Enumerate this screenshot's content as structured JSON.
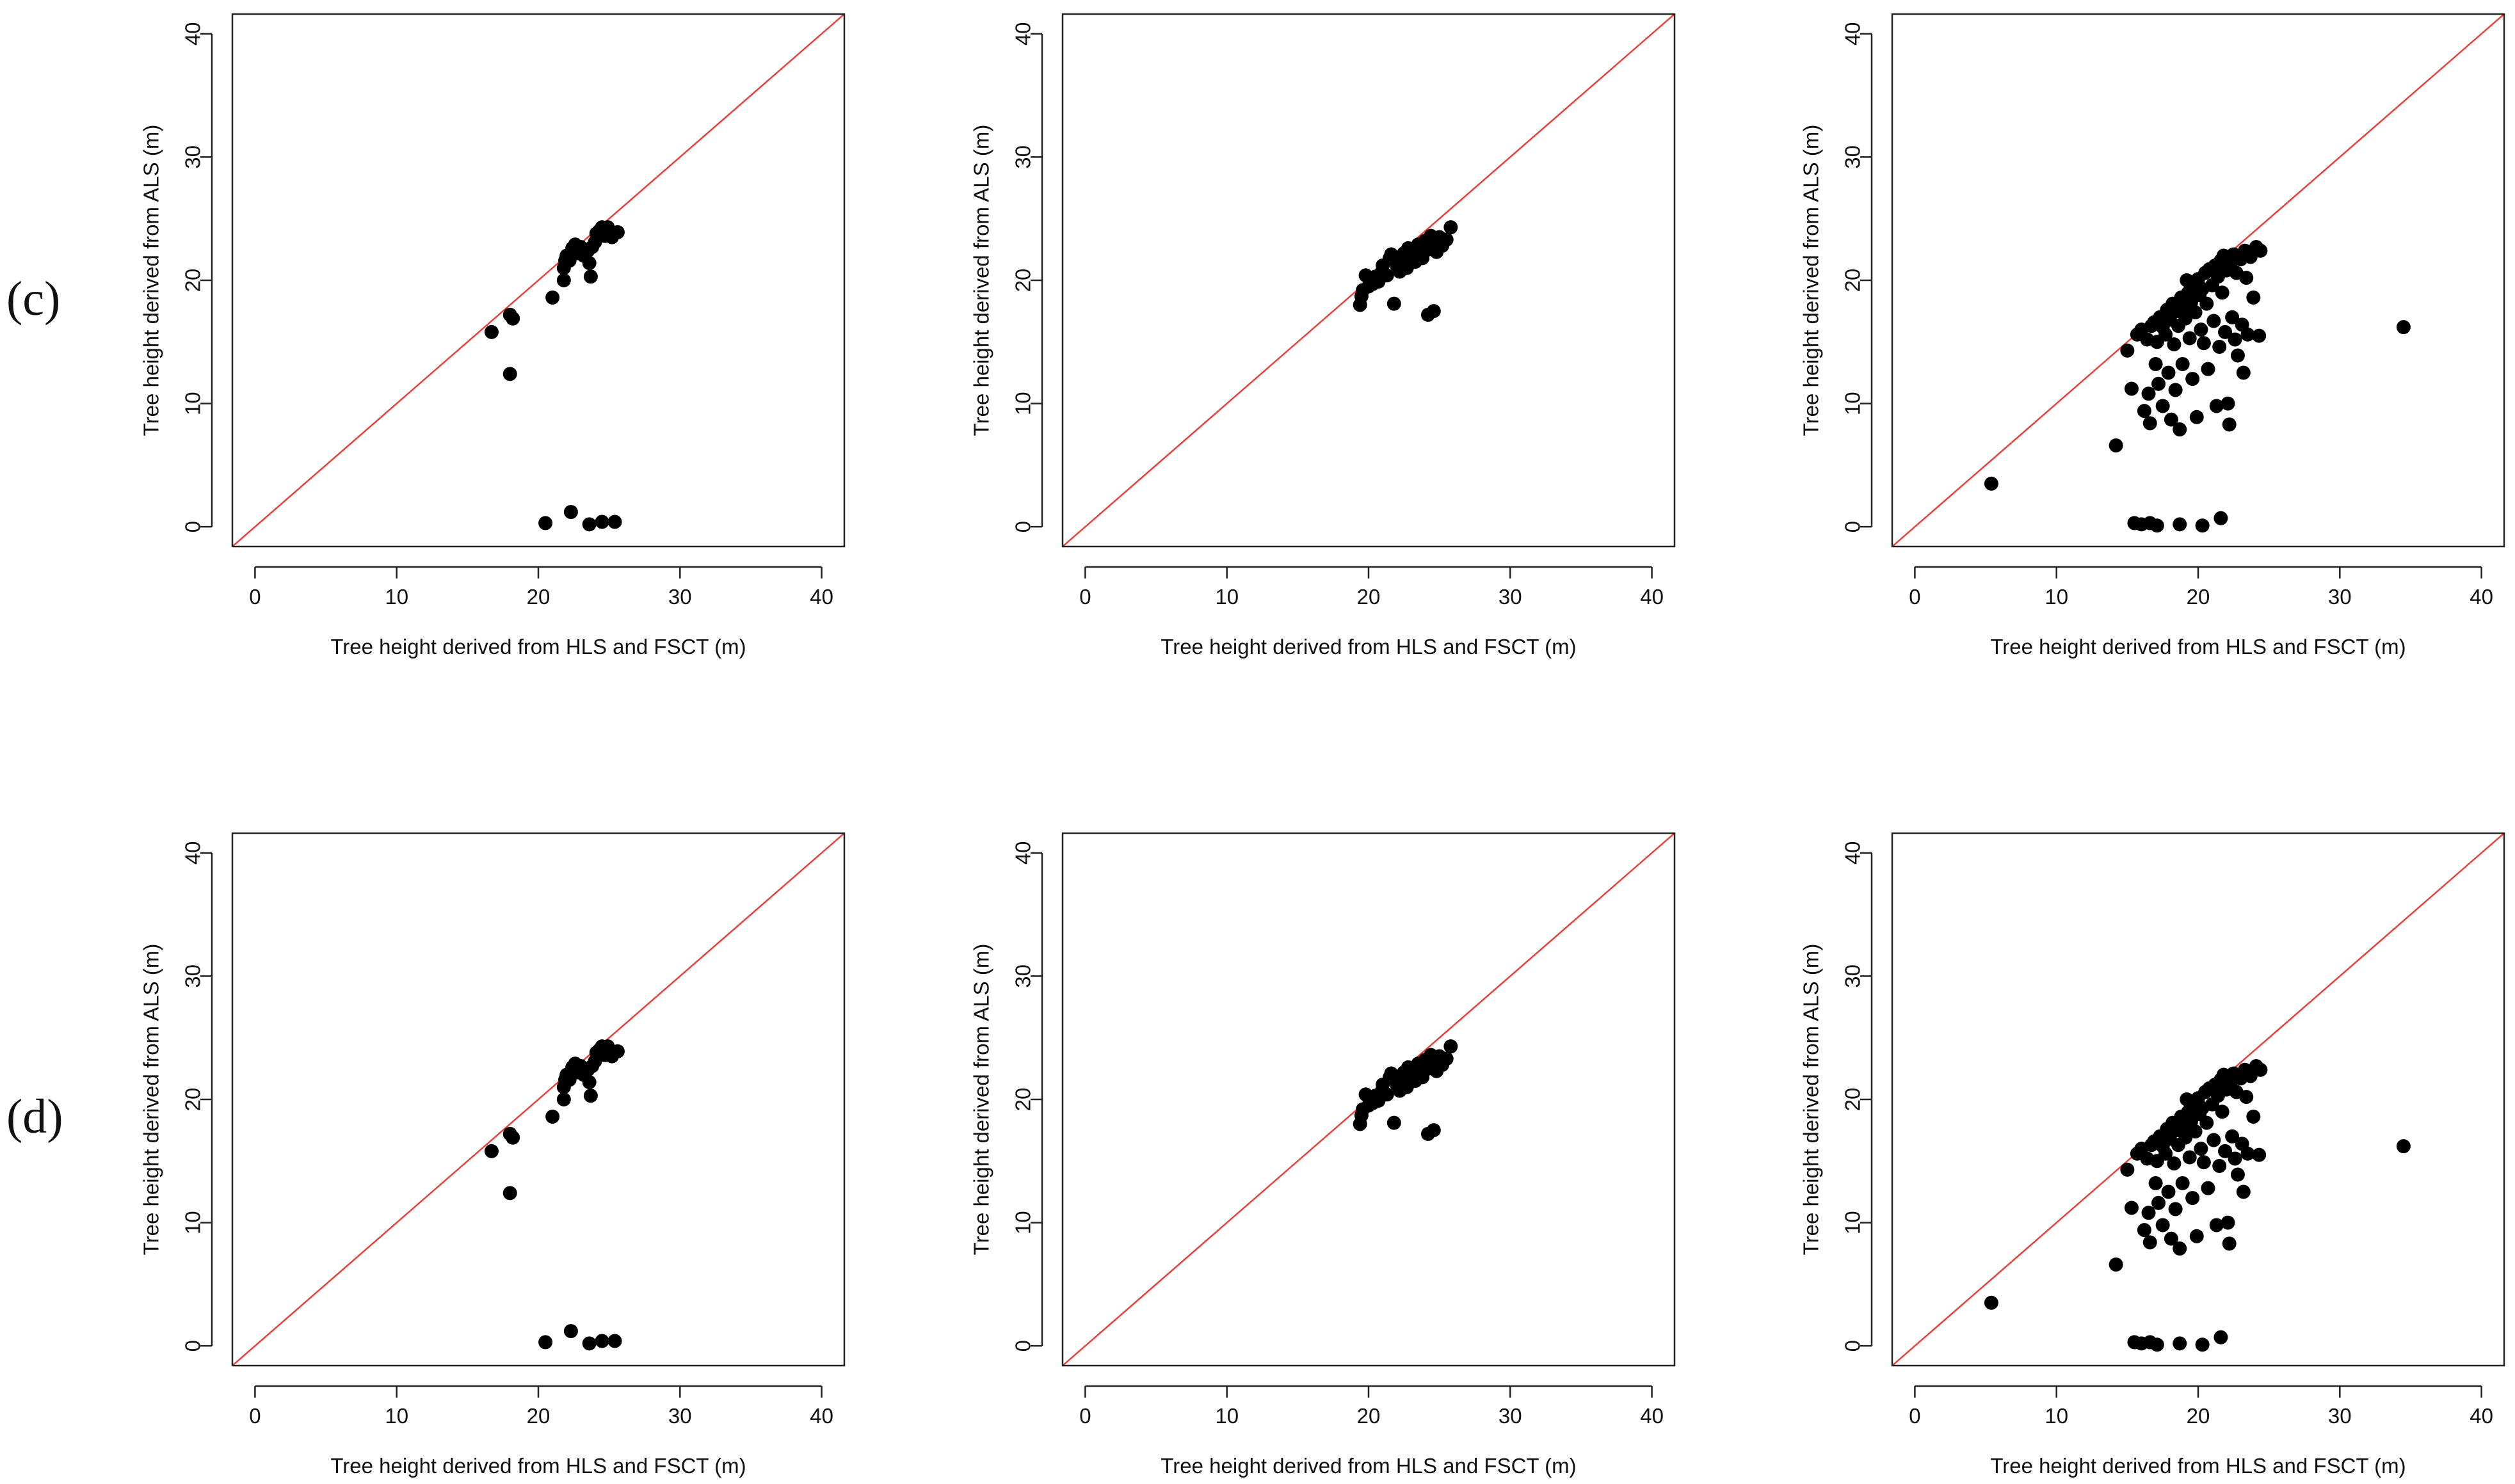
{
  "row_labels": [
    "(c)",
    "(d)"
  ],
  "colors": {
    "reference_line": "#e8413b",
    "points": "#000000",
    "axis": "#222222"
  },
  "chart_data": [
    {
      "type": "scatter",
      "row": "(c)",
      "column": 1,
      "xlabel": "Tree height derived from HLS and FSCT (m)",
      "ylabel": "Tree height derived from ALS (m)",
      "xlim": [
        -1.6,
        41.6
      ],
      "ylim": [
        -1.6,
        41.6
      ],
      "xticks": [
        0,
        10,
        20,
        30,
        40
      ],
      "yticks": [
        0,
        10,
        20,
        30,
        40
      ],
      "reference_line": "y = x",
      "points": [
        [
          16.7,
          15.8
        ],
        [
          18.0,
          17.2
        ],
        [
          18.2,
          16.9
        ],
        [
          18.0,
          12.4
        ],
        [
          21.0,
          18.6
        ],
        [
          21.8,
          20.0
        ],
        [
          21.8,
          21.0
        ],
        [
          21.9,
          21.6
        ],
        [
          22.0,
          22.0
        ],
        [
          22.2,
          21.6
        ],
        [
          22.3,
          22.2
        ],
        [
          22.4,
          22.6
        ],
        [
          22.6,
          22.9
        ],
        [
          22.8,
          22.2
        ],
        [
          23.0,
          22.7
        ],
        [
          23.2,
          22.0
        ],
        [
          23.5,
          22.4
        ],
        [
          23.6,
          21.4
        ],
        [
          23.7,
          20.3
        ],
        [
          23.8,
          22.7
        ],
        [
          24.0,
          23.1
        ],
        [
          24.1,
          23.8
        ],
        [
          24.3,
          24.0
        ],
        [
          24.5,
          24.3
        ],
        [
          24.7,
          23.6
        ],
        [
          24.9,
          24.3
        ],
        [
          25.2,
          23.5
        ],
        [
          25.6,
          23.9
        ],
        [
          20.5,
          0.3
        ],
        [
          22.3,
          1.2
        ],
        [
          23.6,
          0.2
        ],
        [
          24.5,
          0.4
        ],
        [
          25.4,
          0.4
        ]
      ]
    },
    {
      "type": "scatter",
      "row": "(c)",
      "column": 2,
      "xlabel": "Tree height derived from HLS and FSCT (m)",
      "ylabel": "Tree height derived from ALS (m)",
      "xlim": [
        -1.6,
        41.6
      ],
      "ylim": [
        -1.6,
        41.6
      ],
      "xticks": [
        0,
        10,
        20,
        30,
        40
      ],
      "yticks": [
        0,
        10,
        20,
        30,
        40
      ],
      "reference_line": "y = x",
      "points": [
        [
          19.4,
          18.0
        ],
        [
          19.5,
          18.7
        ],
        [
          19.6,
          19.2
        ],
        [
          19.8,
          20.4
        ],
        [
          20.0,
          19.5
        ],
        [
          20.3,
          19.7
        ],
        [
          20.5,
          20.3
        ],
        [
          20.7,
          19.9
        ],
        [
          20.9,
          20.6
        ],
        [
          21.0,
          21.2
        ],
        [
          21.3,
          20.4
        ],
        [
          21.5,
          21.8
        ],
        [
          21.6,
          22.1
        ],
        [
          21.8,
          18.1
        ],
        [
          21.9,
          21.6
        ],
        [
          22.0,
          21.2
        ],
        [
          22.2,
          20.7
        ],
        [
          22.3,
          21.7
        ],
        [
          22.5,
          22.2
        ],
        [
          22.7,
          21.0
        ],
        [
          22.8,
          22.6
        ],
        [
          23.0,
          21.9
        ],
        [
          23.2,
          22.3
        ],
        [
          23.3,
          21.5
        ],
        [
          23.5,
          22.9
        ],
        [
          23.7,
          22.4
        ],
        [
          23.8,
          21.8
        ],
        [
          24.0,
          23.2
        ],
        [
          24.2,
          22.5
        ],
        [
          24.4,
          23.6
        ],
        [
          24.6,
          23.0
        ],
        [
          24.8,
          22.3
        ],
        [
          25.0,
          23.5
        ],
        [
          25.2,
          22.8
        ],
        [
          25.5,
          23.3
        ],
        [
          25.8,
          24.3
        ],
        [
          24.2,
          17.2
        ],
        [
          24.6,
          17.5
        ]
      ]
    },
    {
      "type": "scatter",
      "row": "(c)",
      "column": 3,
      "xlabel": "Tree height derived from HLS and FSCT (m)",
      "ylabel": "Tree height derived from ALS (m)",
      "xlim": [
        -1.6,
        41.6
      ],
      "ylim": [
        -1.6,
        41.6
      ],
      "xticks": [
        0,
        10,
        20,
        30,
        40
      ],
      "yticks": [
        0,
        10,
        20,
        30,
        40
      ],
      "reference_line": "y = x",
      "points": [
        [
          5.4,
          3.5
        ],
        [
          14.2,
          6.6
        ],
        [
          15.0,
          14.3
        ],
        [
          15.3,
          11.2
        ],
        [
          15.7,
          15.6
        ],
        [
          16.0,
          16.0
        ],
        [
          16.2,
          9.4
        ],
        [
          16.4,
          15.2
        ],
        [
          16.5,
          10.8
        ],
        [
          16.6,
          8.4
        ],
        [
          16.7,
          16.3
        ],
        [
          16.9,
          16.6
        ],
        [
          17.0,
          13.2
        ],
        [
          17.1,
          15.0
        ],
        [
          17.2,
          11.6
        ],
        [
          17.3,
          17.0
        ],
        [
          17.5,
          16.2
        ],
        [
          17.5,
          9.8
        ],
        [
          17.7,
          15.6
        ],
        [
          17.8,
          17.6
        ],
        [
          17.9,
          12.5
        ],
        [
          18.0,
          16.8
        ],
        [
          18.1,
          8.7
        ],
        [
          18.2,
          18.1
        ],
        [
          18.3,
          14.8
        ],
        [
          18.4,
          11.1
        ],
        [
          18.5,
          17.5
        ],
        [
          18.6,
          16.3
        ],
        [
          18.7,
          7.9
        ],
        [
          18.8,
          18.6
        ],
        [
          18.9,
          13.2
        ],
        [
          19.0,
          17.8
        ],
        [
          19.1,
          16.9
        ],
        [
          19.2,
          20.0
        ],
        [
          19.3,
          19.0
        ],
        [
          19.4,
          15.3
        ],
        [
          19.5,
          18.2
        ],
        [
          19.6,
          12.0
        ],
        [
          19.7,
          19.5
        ],
        [
          19.8,
          17.4
        ],
        [
          19.9,
          8.9
        ],
        [
          20.0,
          20.1
        ],
        [
          20.1,
          18.8
        ],
        [
          20.2,
          16.0
        ],
        [
          20.3,
          19.3
        ],
        [
          20.4,
          14.9
        ],
        [
          20.5,
          20.6
        ],
        [
          20.6,
          18.1
        ],
        [
          20.7,
          12.8
        ],
        [
          20.8,
          20.9
        ],
        [
          21.0,
          19.6
        ],
        [
          21.1,
          16.7
        ],
        [
          21.2,
          21.2
        ],
        [
          21.3,
          9.8
        ],
        [
          21.4,
          20.3
        ],
        [
          21.5,
          14.6
        ],
        [
          21.6,
          21.6
        ],
        [
          21.7,
          19.0
        ],
        [
          21.8,
          22.0
        ],
        [
          21.9,
          15.8
        ],
        [
          22.0,
          20.8
        ],
        [
          22.1,
          10.0
        ],
        [
          22.2,
          8.3
        ],
        [
          22.3,
          21.4
        ],
        [
          22.4,
          17.0
        ],
        [
          22.5,
          22.1
        ],
        [
          22.6,
          15.2
        ],
        [
          22.7,
          20.6
        ],
        [
          22.8,
          13.9
        ],
        [
          23.0,
          21.7
        ],
        [
          23.1,
          16.4
        ],
        [
          23.2,
          12.5
        ],
        [
          23.3,
          22.4
        ],
        [
          23.4,
          20.2
        ],
        [
          23.5,
          15.6
        ],
        [
          23.7,
          21.9
        ],
        [
          23.9,
          18.6
        ],
        [
          24.1,
          22.7
        ],
        [
          24.3,
          15.5
        ],
        [
          24.4,
          22.4
        ],
        [
          34.5,
          16.2
        ],
        [
          15.5,
          0.3
        ],
        [
          16.0,
          0.2
        ],
        [
          16.6,
          0.3
        ],
        [
          17.1,
          0.1
        ],
        [
          18.7,
          0.2
        ],
        [
          20.3,
          0.1
        ],
        [
          21.6,
          0.7
        ]
      ]
    },
    {
      "type": "scatter",
      "row": "(d)",
      "column": 1,
      "xlabel": "Tree height derived from HLS and FSCT (m)",
      "ylabel": "Tree height derived from ALS (m)",
      "xlim": [
        -1.6,
        41.6
      ],
      "ylim": [
        -1.6,
        41.6
      ],
      "xticks": [
        0,
        10,
        20,
        30,
        40
      ],
      "yticks": [
        0,
        10,
        20,
        30,
        40
      ],
      "reference_line": "y = x",
      "points": [
        [
          16.7,
          15.8
        ],
        [
          18.0,
          17.2
        ],
        [
          18.2,
          16.9
        ],
        [
          18.0,
          12.4
        ],
        [
          21.0,
          18.6
        ],
        [
          21.8,
          20.0
        ],
        [
          21.8,
          21.0
        ],
        [
          21.9,
          21.6
        ],
        [
          22.0,
          22.0
        ],
        [
          22.2,
          21.6
        ],
        [
          22.3,
          22.2
        ],
        [
          22.4,
          22.6
        ],
        [
          22.6,
          22.9
        ],
        [
          22.8,
          22.2
        ],
        [
          23.0,
          22.7
        ],
        [
          23.2,
          22.0
        ],
        [
          23.5,
          22.4
        ],
        [
          23.6,
          21.4
        ],
        [
          23.7,
          20.3
        ],
        [
          23.8,
          22.7
        ],
        [
          24.0,
          23.1
        ],
        [
          24.1,
          23.8
        ],
        [
          24.3,
          24.0
        ],
        [
          24.5,
          24.3
        ],
        [
          24.7,
          23.6
        ],
        [
          24.9,
          24.3
        ],
        [
          25.2,
          23.5
        ],
        [
          25.6,
          23.9
        ],
        [
          20.5,
          0.3
        ],
        [
          22.3,
          1.2
        ],
        [
          23.6,
          0.2
        ],
        [
          24.5,
          0.4
        ],
        [
          25.4,
          0.4
        ]
      ]
    },
    {
      "type": "scatter",
      "row": "(d)",
      "column": 2,
      "xlabel": "Tree height derived from HLS and FSCT (m)",
      "ylabel": "Tree height derived from ALS (m)",
      "xlim": [
        -1.6,
        41.6
      ],
      "ylim": [
        -1.6,
        41.6
      ],
      "xticks": [
        0,
        10,
        20,
        30,
        40
      ],
      "yticks": [
        0,
        10,
        20,
        30,
        40
      ],
      "reference_line": "y = x",
      "points": [
        [
          19.4,
          18.0
        ],
        [
          19.5,
          18.7
        ],
        [
          19.6,
          19.2
        ],
        [
          19.8,
          20.4
        ],
        [
          20.0,
          19.5
        ],
        [
          20.3,
          19.7
        ],
        [
          20.5,
          20.3
        ],
        [
          20.7,
          19.9
        ],
        [
          20.9,
          20.6
        ],
        [
          21.0,
          21.2
        ],
        [
          21.3,
          20.4
        ],
        [
          21.5,
          21.8
        ],
        [
          21.6,
          22.1
        ],
        [
          21.8,
          18.1
        ],
        [
          21.9,
          21.6
        ],
        [
          22.0,
          21.2
        ],
        [
          22.2,
          20.7
        ],
        [
          22.3,
          21.7
        ],
        [
          22.5,
          22.2
        ],
        [
          22.7,
          21.0
        ],
        [
          22.8,
          22.6
        ],
        [
          23.0,
          21.9
        ],
        [
          23.2,
          22.3
        ],
        [
          23.3,
          21.5
        ],
        [
          23.5,
          22.9
        ],
        [
          23.7,
          22.4
        ],
        [
          23.8,
          21.8
        ],
        [
          24.0,
          23.2
        ],
        [
          24.2,
          22.5
        ],
        [
          24.4,
          23.6
        ],
        [
          24.6,
          23.0
        ],
        [
          24.8,
          22.3
        ],
        [
          25.0,
          23.5
        ],
        [
          25.2,
          22.8
        ],
        [
          25.5,
          23.3
        ],
        [
          25.8,
          24.3
        ],
        [
          24.2,
          17.2
        ],
        [
          24.6,
          17.5
        ]
      ]
    },
    {
      "type": "scatter",
      "row": "(d)",
      "column": 3,
      "xlabel": "Tree height derived from HLS and FSCT (m)",
      "ylabel": "Tree height derived from ALS (m)",
      "xlim": [
        -1.6,
        41.6
      ],
      "ylim": [
        -1.6,
        41.6
      ],
      "xticks": [
        0,
        10,
        20,
        30,
        40
      ],
      "yticks": [
        0,
        10,
        20,
        30,
        40
      ],
      "reference_line": "y = x",
      "points": [
        [
          5.4,
          3.5
        ],
        [
          14.2,
          6.6
        ],
        [
          15.0,
          14.3
        ],
        [
          15.3,
          11.2
        ],
        [
          15.7,
          15.6
        ],
        [
          16.0,
          16.0
        ],
        [
          16.2,
          9.4
        ],
        [
          16.4,
          15.2
        ],
        [
          16.5,
          10.8
        ],
        [
          16.6,
          8.4
        ],
        [
          16.7,
          16.3
        ],
        [
          16.9,
          16.6
        ],
        [
          17.0,
          13.2
        ],
        [
          17.1,
          15.0
        ],
        [
          17.2,
          11.6
        ],
        [
          17.3,
          17.0
        ],
        [
          17.5,
          16.2
        ],
        [
          17.5,
          9.8
        ],
        [
          17.7,
          15.6
        ],
        [
          17.8,
          17.6
        ],
        [
          17.9,
          12.5
        ],
        [
          18.0,
          16.8
        ],
        [
          18.1,
          8.7
        ],
        [
          18.2,
          18.1
        ],
        [
          18.3,
          14.8
        ],
        [
          18.4,
          11.1
        ],
        [
          18.5,
          17.5
        ],
        [
          18.6,
          16.3
        ],
        [
          18.7,
          7.9
        ],
        [
          18.8,
          18.6
        ],
        [
          18.9,
          13.2
        ],
        [
          19.0,
          17.8
        ],
        [
          19.1,
          16.9
        ],
        [
          19.2,
          20.0
        ],
        [
          19.3,
          19.0
        ],
        [
          19.4,
          15.3
        ],
        [
          19.5,
          18.2
        ],
        [
          19.6,
          12.0
        ],
        [
          19.7,
          19.5
        ],
        [
          19.8,
          17.4
        ],
        [
          19.9,
          8.9
        ],
        [
          20.0,
          20.1
        ],
        [
          20.1,
          18.8
        ],
        [
          20.2,
          16.0
        ],
        [
          20.3,
          19.3
        ],
        [
          20.4,
          14.9
        ],
        [
          20.5,
          20.6
        ],
        [
          20.6,
          18.1
        ],
        [
          20.7,
          12.8
        ],
        [
          20.8,
          20.9
        ],
        [
          21.0,
          19.6
        ],
        [
          21.1,
          16.7
        ],
        [
          21.2,
          21.2
        ],
        [
          21.3,
          9.8
        ],
        [
          21.4,
          20.3
        ],
        [
          21.5,
          14.6
        ],
        [
          21.6,
          21.6
        ],
        [
          21.7,
          19.0
        ],
        [
          21.8,
          22.0
        ],
        [
          21.9,
          15.8
        ],
        [
          22.0,
          20.8
        ],
        [
          22.1,
          10.0
        ],
        [
          22.2,
          8.3
        ],
        [
          22.3,
          21.4
        ],
        [
          22.4,
          17.0
        ],
        [
          22.5,
          22.1
        ],
        [
          22.6,
          15.2
        ],
        [
          22.7,
          20.6
        ],
        [
          22.8,
          13.9
        ],
        [
          23.0,
          21.7
        ],
        [
          23.1,
          16.4
        ],
        [
          23.2,
          12.5
        ],
        [
          23.3,
          22.4
        ],
        [
          23.4,
          20.2
        ],
        [
          23.5,
          15.6
        ],
        [
          23.7,
          21.9
        ],
        [
          23.9,
          18.6
        ],
        [
          24.1,
          22.7
        ],
        [
          24.3,
          15.5
        ],
        [
          24.4,
          22.4
        ],
        [
          34.5,
          16.2
        ],
        [
          15.5,
          0.3
        ],
        [
          16.0,
          0.2
        ],
        [
          16.6,
          0.3
        ],
        [
          17.1,
          0.1
        ],
        [
          18.7,
          0.2
        ],
        [
          20.3,
          0.1
        ],
        [
          21.6,
          0.7
        ]
      ]
    }
  ]
}
